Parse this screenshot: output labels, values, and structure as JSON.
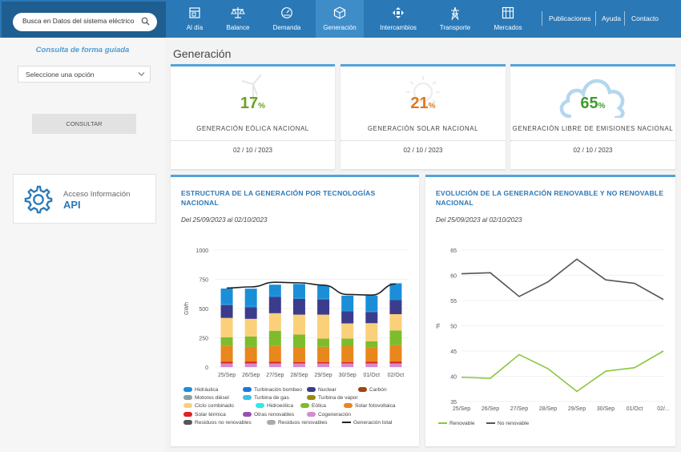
{
  "search": {
    "placeholder": "Busca en Datos del sistema eléctrico"
  },
  "nav": [
    {
      "label": "Al día",
      "icon": "calendar-icon"
    },
    {
      "label": "Balance",
      "icon": "scale-icon"
    },
    {
      "label": "Demanda",
      "icon": "gauge-icon"
    },
    {
      "label": "Generación",
      "icon": "cube-icon",
      "active": true
    },
    {
      "label": "Intercambios",
      "icon": "exchange-arrows-icon"
    },
    {
      "label": "Transporte",
      "icon": "power-tower-icon"
    },
    {
      "label": "Mercados",
      "icon": "building-icon"
    }
  ],
  "top_links": [
    "Publicaciones",
    "Ayuda",
    "Contacto"
  ],
  "sidebar": {
    "guided_title": "Consulta de forma guiada",
    "select_value": "Seleccione una opción",
    "consult_label": "CONSULTAR",
    "api_line1": "Acceso Información",
    "api_line2": "API"
  },
  "page_title": "Generación",
  "kpis": [
    {
      "value": "17",
      "unit": "%",
      "label": "GENERACIÓN EÓLICA NACIONAL",
      "date": "02 / 10 / 2023",
      "color": "#6aa324",
      "icon": "wind-turbine-icon"
    },
    {
      "value": "21",
      "unit": "%",
      "label": "GENERACIÓN SOLAR NACIONAL",
      "date": "02 / 10 / 2023",
      "color": "#e0781c",
      "icon": "sun-icon"
    },
    {
      "value": "65",
      "unit": "%",
      "label": "GENERACIÓN LIBRE DE EMISIONES NACIONAL",
      "date": "02 / 10 / 2023",
      "color": "#3c9d2e",
      "icon": "cloud-icon"
    }
  ],
  "stacked_chart": {
    "title": "ESTRUCTURA DE LA GENERACIÓN POR TECNOLOGÍAS NACIONAL",
    "range": "Del 25/09/2023 al 02/10/2023"
  },
  "renewable_chart": {
    "title": "EVOLUCIÓN DE LA GENERACIÓN RENOVABLE Y NO RENOVABLE NACIONAL",
    "range": "Del 25/09/2023 al 02/10/2023"
  },
  "chart_data": [
    {
      "type": "bar",
      "stacked": true,
      "ylabel": "GWh",
      "ylim": [
        0,
        1000
      ],
      "yticks": [
        "0",
        "250",
        "500",
        "750",
        "1000"
      ],
      "categories": [
        "25/Sep",
        "26/Sep",
        "27/Sep",
        "28/Sep",
        "29/Sep",
        "30/Sep",
        "01/Oct",
        "02/Oct"
      ],
      "series": [
        {
          "name": "Cogeneración",
          "color": "#d48bd0",
          "values": [
            30,
            30,
            30,
            30,
            30,
            30,
            30,
            30
          ]
        },
        {
          "name": "Residuos no renovables",
          "color": "#555555",
          "values": [
            3,
            3,
            3,
            3,
            3,
            3,
            3,
            3
          ]
        },
        {
          "name": "Solar térmica",
          "color": "#e02020",
          "values": [
            12,
            14,
            12,
            10,
            10,
            10,
            12,
            14
          ]
        },
        {
          "name": "Solar fotovoltaica",
          "color": "#e8871c",
          "values": [
            135,
            125,
            135,
            125,
            130,
            135,
            125,
            140
          ]
        },
        {
          "name": "Eólica",
          "color": "#7dbd2c",
          "values": [
            75,
            90,
            130,
            110,
            70,
            65,
            50,
            125
          ]
        },
        {
          "name": "Ciclo combinado",
          "color": "#fbd07a",
          "values": [
            165,
            150,
            150,
            170,
            205,
            130,
            155,
            140
          ]
        },
        {
          "name": "Nuclear",
          "color": "#3c3c8c",
          "values": [
            110,
            100,
            140,
            135,
            130,
            105,
            95,
            120
          ]
        },
        {
          "name": "Turbinación bombeo",
          "color": "#1a8fd8",
          "values": [
            6,
            10,
            10,
            10,
            10,
            8,
            7,
            10
          ]
        },
        {
          "name": "Hidráulica",
          "color": "#1a8fd8",
          "values": [
            135,
            148,
            94,
            117,
            111,
            124,
            134,
            134
          ]
        }
      ],
      "line": {
        "name": "Generación total",
        "color": "#222222",
        "values": [
          675,
          685,
          725,
          720,
          700,
          620,
          615,
          710
        ]
      },
      "legend": [
        {
          "name": "Hidráulica",
          "color": "#1a8fd8",
          "shape": "bar"
        },
        {
          "name": "Turbinación bombeo",
          "color": "#1a78d6",
          "shape": "bar"
        },
        {
          "name": "Nuclear",
          "color": "#3c3c8c",
          "shape": "bar"
        },
        {
          "name": "Carbón",
          "color": "#a0460f",
          "shape": "bar"
        },
        {
          "name": "Motores diésel",
          "color": "#8aa0a0",
          "shape": "bar"
        },
        {
          "name": "Turbina de gas",
          "color": "#39c1e8",
          "shape": "bar"
        },
        {
          "name": "Turbina de vapor",
          "color": "#9a8a14",
          "shape": "bar"
        },
        {
          "name": "Ciclo combinado",
          "color": "#fbd07a",
          "shape": "bar"
        },
        {
          "name": "Hidroeólica",
          "color": "#2ee8e8",
          "shape": "bar"
        },
        {
          "name": "Eólica",
          "color": "#7dbd2c",
          "shape": "bar"
        },
        {
          "name": "Solar fotovoltaica",
          "color": "#e8871c",
          "shape": "bar"
        },
        {
          "name": "Solar térmica",
          "color": "#e02020",
          "shape": "bar"
        },
        {
          "name": "Otras renovables",
          "color": "#9a4fb5",
          "shape": "bar"
        },
        {
          "name": "Cogeneración",
          "color": "#d48bd0",
          "shape": "bar"
        },
        {
          "name": "Residuos no renovables",
          "color": "#555555",
          "shape": "bar"
        },
        {
          "name": "Residuos renovables",
          "color": "#aaaaaa",
          "shape": "bar"
        },
        {
          "name": "Generación total",
          "color": "#222222",
          "shape": "line"
        }
      ]
    },
    {
      "type": "line",
      "ylabel": "%",
      "ylim": [
        35,
        65
      ],
      "yticks": [
        "35",
        "40",
        "45",
        "50",
        "55",
        "60",
        "65"
      ],
      "categories": [
        "25/Sep",
        "26/Sep",
        "27/Sep",
        "28/Sep",
        "29/Sep",
        "30/Sep",
        "01/Oct",
        "02/..."
      ],
      "series": [
        {
          "name": "Renovable",
          "color": "#8cc63f",
          "values": [
            39.8,
            39.6,
            44.3,
            41.5,
            37.0,
            41.0,
            41.7,
            45.0
          ]
        },
        {
          "name": "No renovable",
          "color": "#555555",
          "values": [
            60.3,
            60.5,
            55.8,
            58.7,
            63.2,
            59.1,
            58.4,
            55.2
          ]
        }
      ]
    }
  ]
}
